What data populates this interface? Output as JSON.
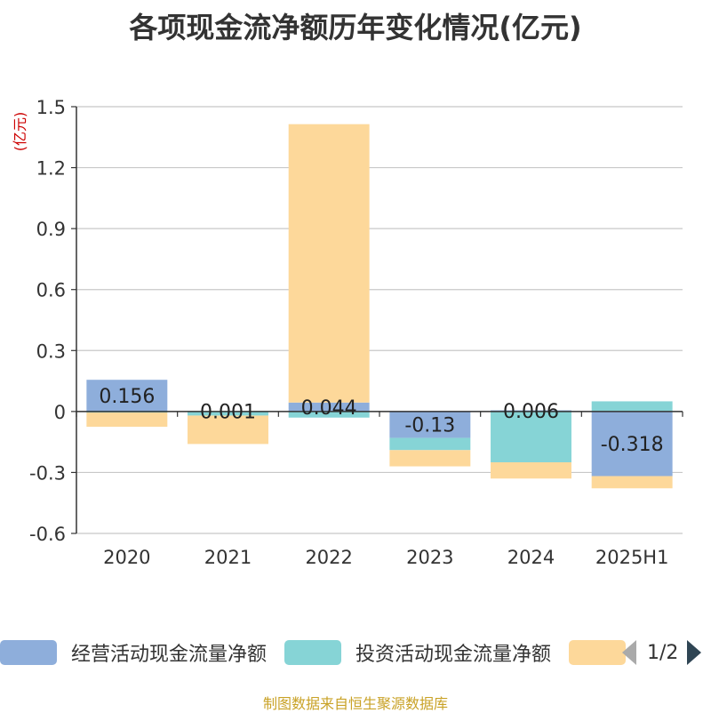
{
  "title": "各项现金流净额历年变化情况(亿元)",
  "source": "制图数据来自恒生聚源数据库",
  "colors": {
    "operating": "#8eaedb",
    "investing": "#86d4d6",
    "financing": "#fdd89a",
    "source_text": "#c9a227",
    "unit_text": "#cc0000"
  },
  "legend": {
    "items": [
      {
        "label": "经营活动现金流量净额",
        "color": "#8eaedb"
      },
      {
        "label": "投资活动现金流量净额",
        "color": "#86d4d6"
      },
      {
        "label": "",
        "color": "#fdd89a"
      }
    ],
    "page": "1/2",
    "prev_icon": "triangle-left-icon",
    "next_icon": "triangle-right-icon"
  },
  "chart_data": {
    "type": "bar",
    "stacked": true,
    "categories": [
      "2020",
      "2021",
      "2022",
      "2023",
      "2024",
      "2025H1"
    ],
    "series": [
      {
        "name": "经营活动现金流量净额",
        "values": [
          0.156,
          0.001,
          0.044,
          -0.13,
          0.006,
          -0.318
        ],
        "labels": [
          "0.156",
          "0.001",
          "0.044",
          "-0.13",
          "0.006",
          "-0.318"
        ]
      },
      {
        "name": "投资活动现金流量净额",
        "values": [
          -0.005,
          -0.02,
          -0.03,
          -0.06,
          -0.25,
          0.05
        ]
      },
      {
        "name": "",
        "values": [
          -0.07,
          -0.14,
          1.37,
          -0.08,
          -0.08,
          -0.06
        ]
      }
    ],
    "ylabel": "(亿元)",
    "yticks": [
      "1.5",
      "1.2",
      "0.9",
      "0.6",
      "0.3",
      "0",
      "-0.3",
      "-0.6"
    ],
    "ylim": [
      -0.6,
      1.5
    ],
    "grid": true,
    "legend_position": "bottom"
  }
}
